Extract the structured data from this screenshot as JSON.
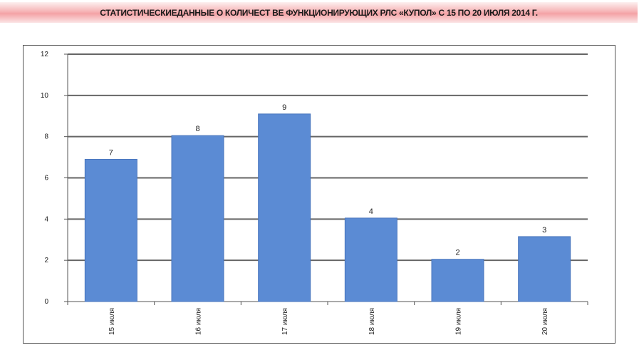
{
  "header": {
    "title": "СТАТИСТИЧЕСКИЕДАННЫЕ О КОЛИЧЕСТ ВЕ ФУНКЦИОНИРУЮЩИХ РЛС «КУПОЛ» С 15 ПО 20 ИЮЛЯ 2014 Г."
  },
  "colors": {
    "bar": "#5b8bd4",
    "bar_edge": "#4a76bd",
    "grid": "#666666",
    "title_band": "#f4a2a5"
  },
  "chart_data": {
    "type": "bar",
    "title": "СТАТИСТИЧЕСКИЕДАННЫЕ О КОЛИЧЕСТ ВЕ ФУНКЦИОНИРУЮЩИХ РЛС «КУПОЛ» С 15 ПО 20 ИЮЛЯ 2014 Г.",
    "xlabel": "",
    "ylabel": "",
    "categories": [
      "15 июля",
      "16 июля",
      "17 июля",
      "18 июля",
      "19 июля",
      "20 июля"
    ],
    "values": [
      6.9,
      8.05,
      9.1,
      4.05,
      2.05,
      3.15
    ],
    "data_labels": [
      "7",
      "8",
      "9",
      "4",
      "2",
      "3"
    ],
    "ylim": [
      0,
      12
    ],
    "yticks": [
      "0",
      "2",
      "4",
      "6",
      "8",
      "10",
      "12"
    ],
    "grid": true,
    "legend": "none",
    "category_label_rotation": "vertical"
  }
}
